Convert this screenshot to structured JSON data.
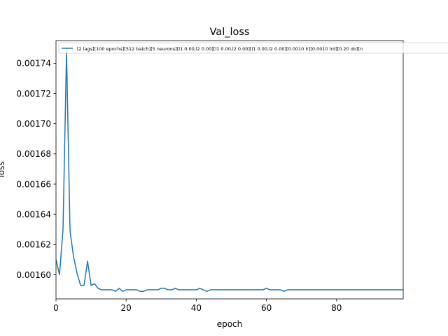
{
  "chart_data": {
    "type": "line",
    "title": "Val_loss",
    "xlabel": "epoch",
    "ylabel": "loss",
    "xlim": [
      0,
      99
    ],
    "ylim": [
      0.001584,
      0.001755
    ],
    "xticks": [
      0,
      20,
      40,
      60,
      80
    ],
    "xtick_labels": [
      "0",
      "20",
      "40",
      "60",
      "80"
    ],
    "yticks": [
      0.0016,
      0.00162,
      0.00164,
      0.00166,
      0.00168,
      0.0017,
      0.00172,
      0.00174
    ],
    "ytick_labels": [
      "0.00160",
      "0.00162",
      "0.00164",
      "0.00166",
      "0.00168",
      "0.00170",
      "0.00172",
      "0.00174"
    ],
    "grid": false,
    "legend_position": "top-left",
    "series": [
      {
        "name": "[2 lags][100 epochs][512 batch][5 neurons][l1 0.00,l2 0.00][l1 0.00,l2 0.00][l1 0.00,l2 0.00][0.0010 lr][0.0010 lrd][0.20 do][n",
        "color": "#1f77b4",
        "x": [
          0,
          1,
          2,
          3,
          4,
          5,
          6,
          7,
          8,
          9,
          10,
          11,
          12,
          13,
          14,
          15,
          16,
          17,
          18,
          19,
          20,
          21,
          22,
          23,
          24,
          25,
          26,
          27,
          28,
          29,
          30,
          31,
          32,
          33,
          34,
          35,
          36,
          37,
          38,
          39,
          40,
          41,
          42,
          43,
          44,
          45,
          46,
          47,
          48,
          49,
          50,
          51,
          52,
          53,
          54,
          55,
          56,
          57,
          58,
          59,
          60,
          61,
          62,
          63,
          64,
          65,
          66,
          67,
          68,
          69,
          70,
          71,
          72,
          73,
          74,
          75,
          76,
          77,
          78,
          79,
          80,
          81,
          82,
          83,
          84,
          85,
          86,
          87,
          88,
          89,
          90,
          91,
          92,
          93,
          94,
          95,
          96,
          97,
          98,
          99
        ],
        "values": [
          0.00161,
          0.0016,
          0.00163,
          0.001748,
          0.001629,
          0.001612,
          0.001601,
          0.001593,
          0.001593,
          0.001609,
          0.001593,
          0.001594,
          0.001591,
          0.00159,
          0.00159,
          0.00159,
          0.00159,
          0.001589,
          0.001591,
          0.001589,
          0.00159,
          0.00159,
          0.00159,
          0.00159,
          0.001589,
          0.001589,
          0.00159,
          0.00159,
          0.00159,
          0.00159,
          0.001591,
          0.001591,
          0.00159,
          0.00159,
          0.001591,
          0.00159,
          0.00159,
          0.00159,
          0.00159,
          0.00159,
          0.00159,
          0.001591,
          0.00159,
          0.001589,
          0.00159,
          0.00159,
          0.00159,
          0.00159,
          0.00159,
          0.00159,
          0.00159,
          0.00159,
          0.00159,
          0.00159,
          0.00159,
          0.00159,
          0.00159,
          0.00159,
          0.00159,
          0.00159,
          0.001591,
          0.00159,
          0.00159,
          0.00159,
          0.00159,
          0.001589,
          0.00159,
          0.00159,
          0.00159,
          0.00159,
          0.00159,
          0.00159,
          0.00159,
          0.00159,
          0.00159,
          0.00159,
          0.00159,
          0.00159,
          0.00159,
          0.00159,
          0.00159,
          0.00159,
          0.00159,
          0.00159,
          0.00159,
          0.00159,
          0.00159,
          0.00159,
          0.00159,
          0.00159,
          0.00159,
          0.00159,
          0.00159,
          0.00159,
          0.00159,
          0.00159,
          0.00159,
          0.00159,
          0.00159,
          0.00159
        ]
      }
    ]
  }
}
